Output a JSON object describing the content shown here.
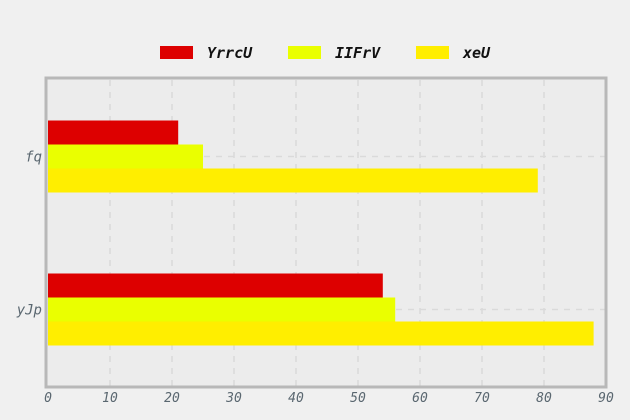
{
  "chart_data": {
    "type": "bar",
    "orientation": "horizontal",
    "title": "",
    "xlabel": "",
    "ylabel": "",
    "categories": [
      "yJp",
      "fq"
    ],
    "series": [
      {
        "name": "YrrcU",
        "color": "#dd0000",
        "values": [
          54,
          21
        ]
      },
      {
        "name": "IIFrV",
        "color": "#eaff00",
        "values": [
          56,
          25
        ]
      },
      {
        "name": "xeU",
        "color": "#ffee00",
        "values": [
          88,
          79
        ]
      }
    ],
    "xlim": [
      0,
      90
    ],
    "xticks": [
      0,
      10,
      20,
      30,
      40,
      50,
      60,
      70,
      80,
      90
    ],
    "grid": true,
    "legend_position": "top"
  }
}
